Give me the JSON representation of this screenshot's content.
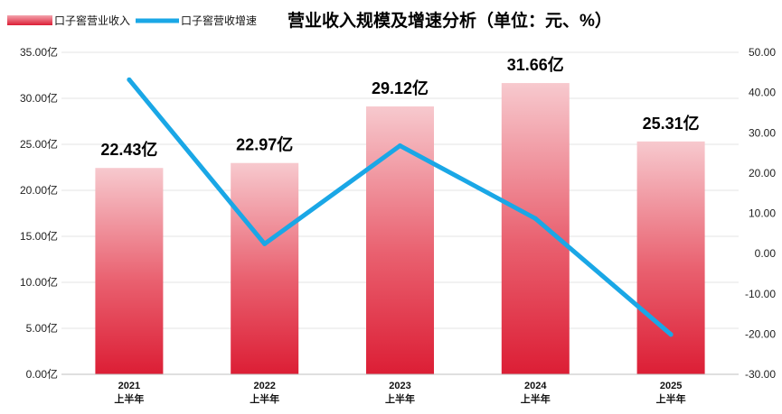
{
  "chart_data": {
    "type": "bar",
    "title": "营业收入规模及增速分析（单位：元、%）",
    "categories": [
      [
        "2021",
        "上半年"
      ],
      [
        "2022",
        "上半年"
      ],
      [
        "2023",
        "上半年"
      ],
      [
        "2024",
        "上半年"
      ],
      [
        "2025",
        "上半年"
      ]
    ],
    "series": [
      {
        "name": "口子窖营业收入",
        "type": "bar",
        "axis": "left",
        "values": [
          22.43,
          22.97,
          29.12,
          31.66,
          25.31
        ],
        "labels": [
          "22.43亿",
          "22.97亿",
          "29.12亿",
          "31.66亿",
          "25.31亿"
        ],
        "color": "#e0263c"
      },
      {
        "name": "口子窖营收增速",
        "type": "line",
        "axis": "right",
        "values": [
          43.2,
          2.4,
          26.8,
          8.7,
          -20.1
        ],
        "color": "#1aa7e6"
      }
    ],
    "y_left": {
      "ylim": [
        0,
        35
      ],
      "ticks": [
        0,
        5,
        10,
        15,
        20,
        25,
        30,
        35
      ],
      "tick_labels": [
        "0.00亿",
        "5.00亿",
        "10.00亿",
        "15.00亿",
        "20.00亿",
        "25.00亿",
        "30.00亿",
        "35.00亿"
      ]
    },
    "y_right": {
      "ylim": [
        -30,
        50
      ],
      "ticks": [
        -30,
        -20,
        -10,
        0,
        10,
        20,
        30,
        40,
        50
      ],
      "tick_labels": [
        "-30.00",
        "-20.00",
        "-10.00",
        "0.00",
        "10.00",
        "20.00",
        "30.00",
        "40.00",
        "50.00"
      ]
    },
    "grid": true,
    "legend": "top-left"
  }
}
